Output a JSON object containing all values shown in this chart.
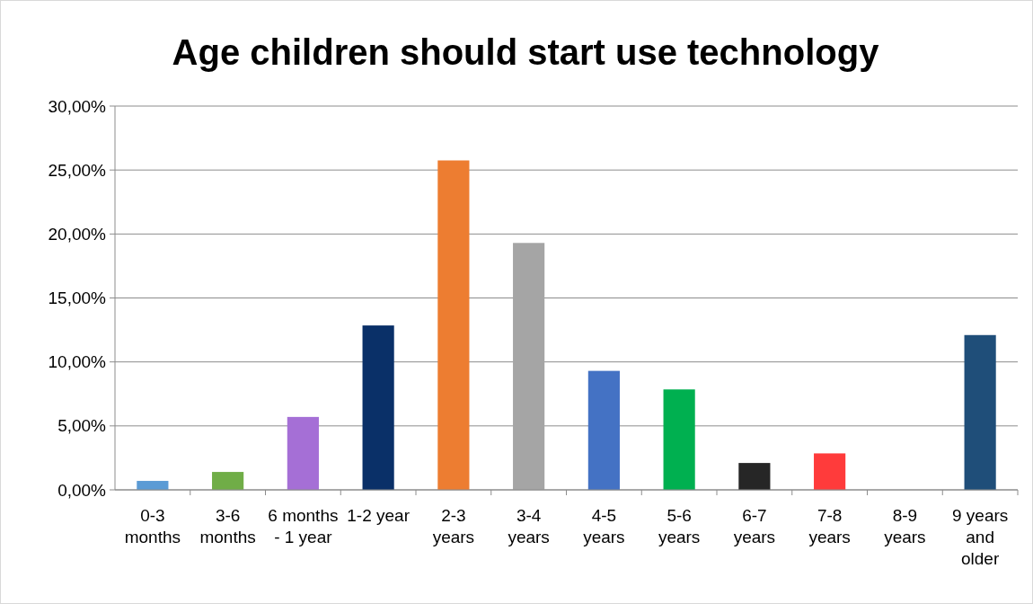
{
  "chart_data": {
    "type": "bar",
    "title": "Age children should start use technology",
    "categories": [
      "0-3 months",
      "3-6 months",
      "6 months - 1 year",
      "1-2 year",
      "2-3 years",
      "3-4 years",
      "4-5 years",
      "5-6 years",
      "6-7 years",
      "7-8 years",
      "8-9 years",
      "9 years and older"
    ],
    "values": [
      0.7,
      1.4,
      5.7,
      12.85,
      25.75,
      19.3,
      9.3,
      7.85,
      2.1,
      2.85,
      0,
      12.1
    ],
    "colors": [
      "#5b9bd5",
      "#70ad47",
      "#a56fd6",
      "#0a3068",
      "#ed7d31",
      "#a5a5a5",
      "#4472c4",
      "#00b050",
      "#262626",
      "#ff3b3b",
      "#7f7f7f",
      "#1f4e79"
    ],
    "ylim": [
      0,
      30
    ],
    "yticks": [
      {
        "value": 0,
        "label": "0,00%"
      },
      {
        "value": 5,
        "label": "5,00%"
      },
      {
        "value": 10,
        "label": "10,00%"
      },
      {
        "value": 15,
        "label": "15,00%"
      },
      {
        "value": 20,
        "label": "20,00%"
      },
      {
        "value": 25,
        "label": "25,00%"
      },
      {
        "value": 30,
        "label": "30,00%"
      }
    ],
    "grid": "y"
  }
}
